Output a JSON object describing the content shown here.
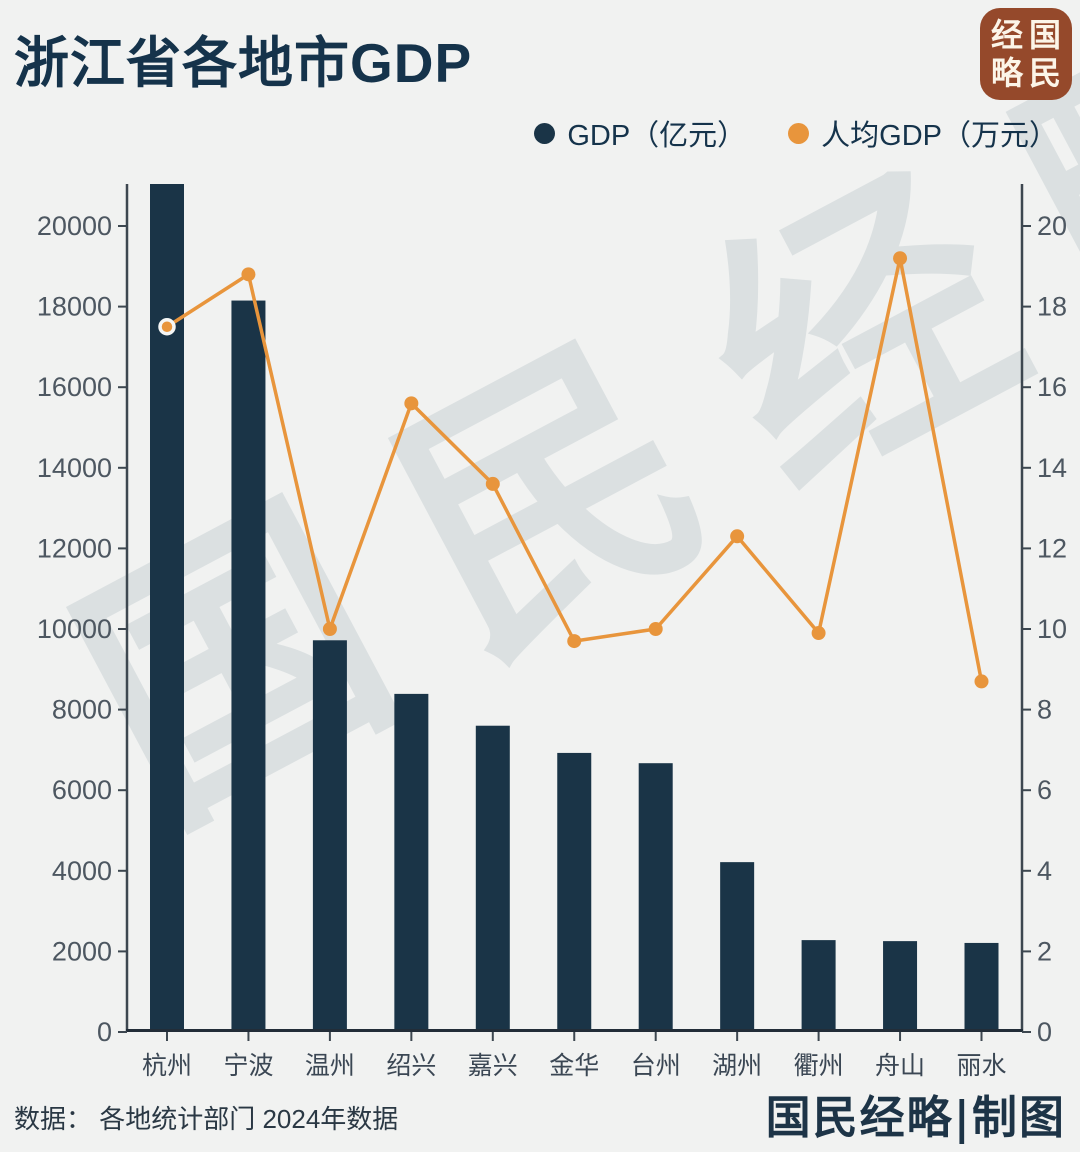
{
  "page": {
    "title": "浙江省各地市GDP",
    "watermark": "国民经略",
    "badge": {
      "text": "国民经略",
      "grid": [
        "经",
        "国",
        "略",
        "民"
      ],
      "bg_color": "#95492b",
      "text_color": "#fcf5e8"
    },
    "footer": {
      "source": "数据： 各地统计部门 2024年数据",
      "credit": "国民经略|制图"
    }
  },
  "legend": {
    "items": [
      {
        "label": "GDP（亿元）",
        "marker": "navy-dot",
        "marker_color": "#1a3447"
      },
      {
        "label": "人均GDP（万元）",
        "marker": "orange-dot",
        "marker_color": "#e8953c"
      }
    ]
  },
  "colors": {
    "background": "#f1f2f1",
    "bar": "#1a3447",
    "line": "#e8953c",
    "axis": "#3d4750",
    "tick_label": "#4d5761",
    "title_text": "#15334b",
    "watermark": "#51707f",
    "baseline": "#222d38",
    "point_halo": "#f5f6f5"
  },
  "chart_data": {
    "type": "combo",
    "title": "浙江省各地市GDP",
    "categories": [
      "杭州",
      "宁波",
      "温州",
      "绍兴",
      "嘉兴",
      "金华",
      "台州",
      "湖州",
      "衢州",
      "舟山",
      "丽水"
    ],
    "series": [
      {
        "name": "GDP（亿元）",
        "chart_type": "bar",
        "axis": "left",
        "color": "#1a3447",
        "values": [
          21860,
          18150,
          9720,
          8390,
          7600,
          6925,
          6670,
          4215,
          2280,
          2255,
          2210
        ]
      },
      {
        "name": "人均GDP（万元）",
        "chart_type": "line",
        "axis": "right",
        "color": "#e8953c",
        "first_point_halo": true,
        "values": [
          17.5,
          18.8,
          10.0,
          15.6,
          13.6,
          9.7,
          10.0,
          12.3,
          9.9,
          19.2,
          8.7
        ]
      }
    ],
    "left_axis": {
      "min": 0,
      "max": 20000,
      "tick_step": 2000
    },
    "right_axis": {
      "min": 0,
      "max": 20,
      "tick_step": 2
    },
    "grid": false,
    "legend_position": "top-right",
    "bars_clipped_at_plot_top": true,
    "source_note": "数据： 各地统计部门 2024年数据"
  }
}
